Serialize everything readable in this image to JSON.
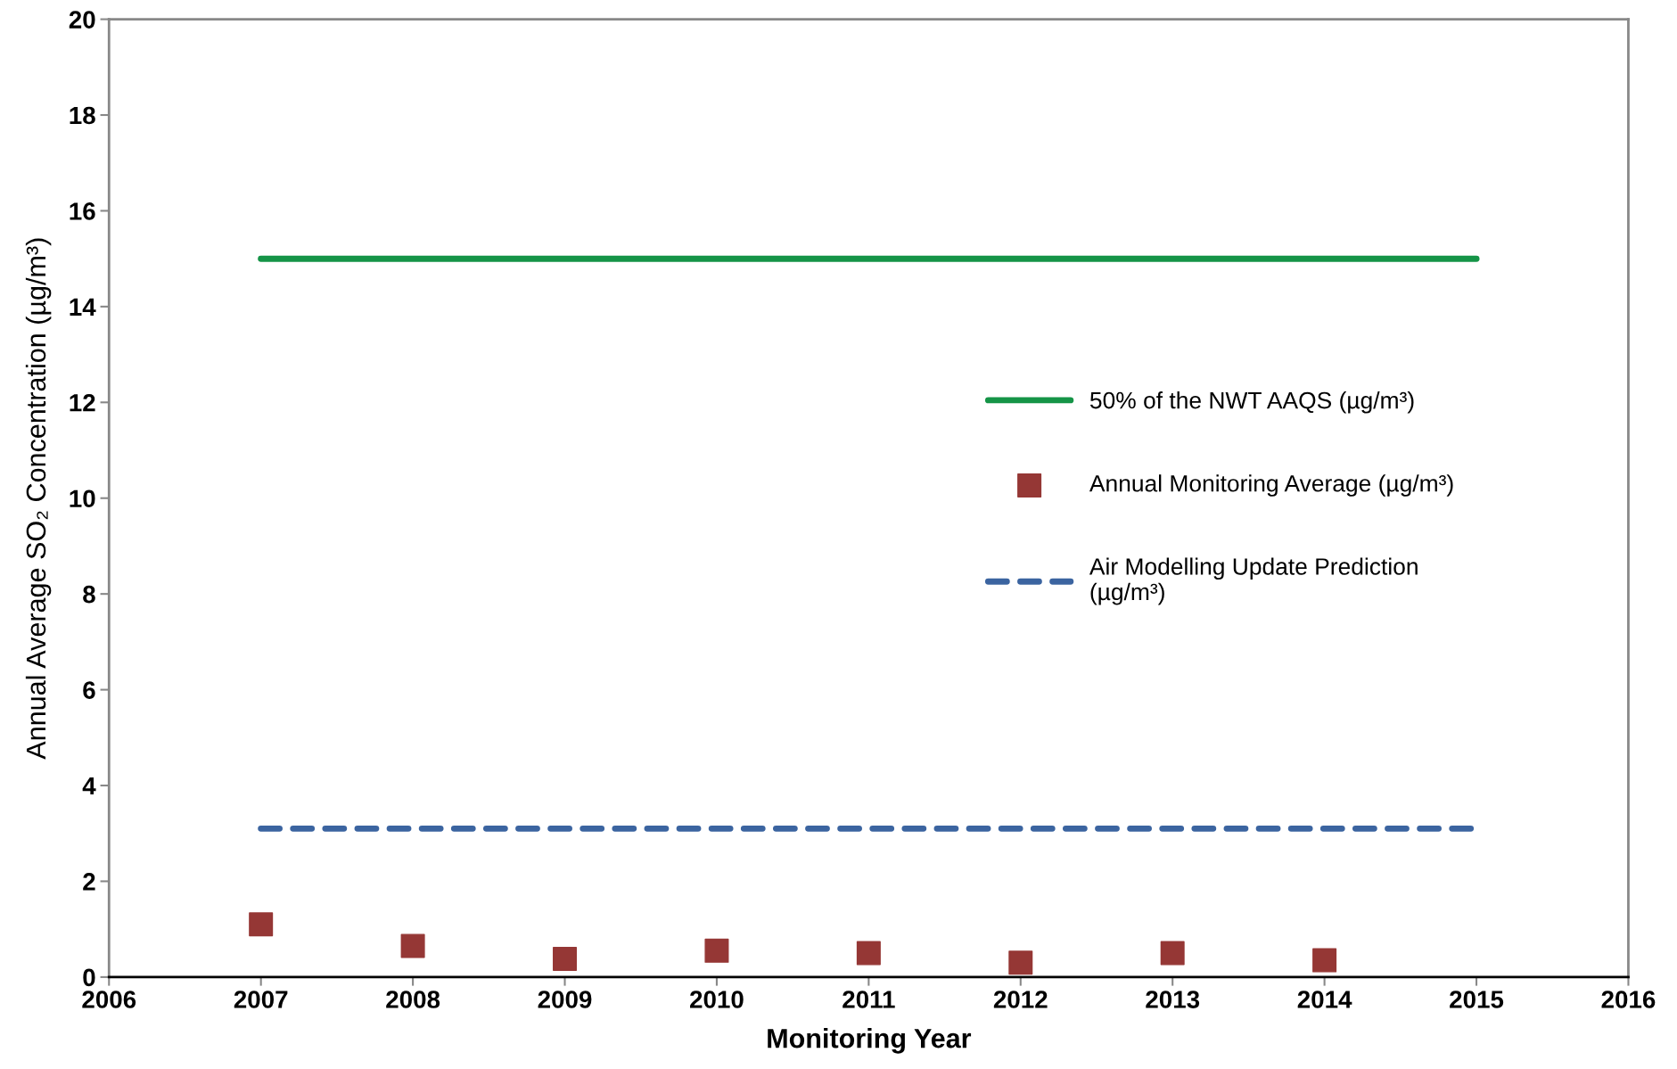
{
  "chart_data": {
    "type": "scatter",
    "xlabel": "Monitoring Year",
    "ylabel": "Annual Average SO₂ Concentration (µg/m³)",
    "series": [
      {
        "name": "50% of the NWT AAQS (µg/m³)",
        "type": "line",
        "color": "#159447",
        "x": [
          2007,
          2015
        ],
        "values": [
          15,
          15
        ],
        "marker": "none",
        "line_style": "solid"
      },
      {
        "name": "Annual Monitoring Average (µg/m³)",
        "color": "#953735",
        "x": [
          2007,
          2008,
          2009,
          2010,
          2011,
          2012,
          2013,
          2014
        ],
        "values": [
          1.1,
          0.65,
          0.38,
          0.55,
          0.5,
          0.3,
          0.5,
          0.35
        ],
        "marker": "square"
      },
      {
        "name": "Air Modelling Update Prediction\n(µg/m³)",
        "type": "line",
        "color": "#3b64a0",
        "x": [
          2007,
          2015
        ],
        "values": [
          3.1,
          3.1
        ],
        "marker": "none",
        "line_style": "dashed"
      }
    ],
    "xlim": [
      2006,
      2016
    ],
    "xticks": [
      2006,
      2007,
      2008,
      2009,
      2010,
      2011,
      2012,
      2013,
      2014,
      2015,
      2016
    ],
    "ylim": [
      0,
      20
    ],
    "yticks": [
      0,
      2,
      4,
      6,
      8,
      10,
      12,
      14,
      16,
      18,
      20
    ],
    "grid": false,
    "legend": "center right"
  }
}
